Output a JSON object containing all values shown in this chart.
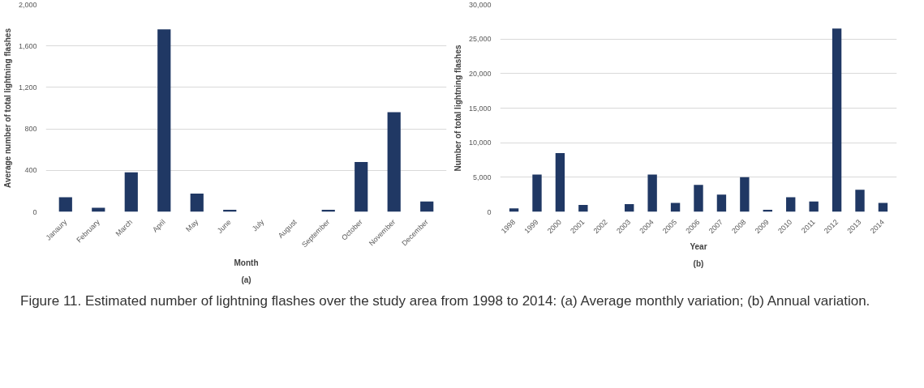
{
  "chart_data": [
    {
      "type": "bar",
      "xlabel": "Month",
      "ylabel": "Average number of total lightning flashes",
      "categories": [
        "Janaury",
        "February",
        "March",
        "April",
        "May",
        "June",
        "July",
        "August",
        "September",
        "October",
        "November",
        "December"
      ],
      "values": [
        140,
        40,
        380,
        1760,
        175,
        20,
        0,
        0,
        20,
        480,
        960,
        100
      ],
      "color": "#203864",
      "ylim": [
        0,
        2000
      ],
      "yticks": [
        0,
        400,
        800,
        {
          "value": 1200,
          "label": "1,200"
        },
        {
          "value": 1600,
          "label": "1,600"
        },
        {
          "value": 2000,
          "label": "2,000"
        }
      ],
      "grid": "y",
      "annotations": [
        "(a)",
        "Figure 11. Estimated number of lightning flashes over the study area from 1998 to 2014: (a) Average monthly variation; (b) Annual variation."
      ]
    },
    {
      "type": "bar",
      "xlabel": "Year",
      "ylabel": "Number of total lightning flashes",
      "categories": [
        "1998",
        "1999",
        "2000",
        "2001",
        "2002",
        "2003",
        "2004",
        "2005",
        "2006",
        "2007",
        "2008",
        "2009",
        "2010",
        "2011",
        "2012",
        "2013",
        "2014"
      ],
      "values": [
        500,
        5400,
        8500,
        1000,
        0,
        1100,
        5400,
        1300,
        3900,
        2500,
        5000,
        300,
        2100,
        1500,
        26500,
        3200,
        1300
      ],
      "color": "#203864",
      "ylim": [
        0,
        30000
      ],
      "yticks": [
        0,
        {
          "value": 5000,
          "label": "5,000"
        },
        {
          "value": 10000,
          "label": "10,000"
        },
        {
          "value": 15000,
          "label": "15,000"
        },
        {
          "value": 20000,
          "label": "20,000"
        },
        {
          "value": 25000,
          "label": "25,000"
        },
        {
          "value": 30000,
          "label": "30,000"
        }
      ],
      "grid": "y",
      "annotations": [
        "(b)"
      ]
    }
  ]
}
